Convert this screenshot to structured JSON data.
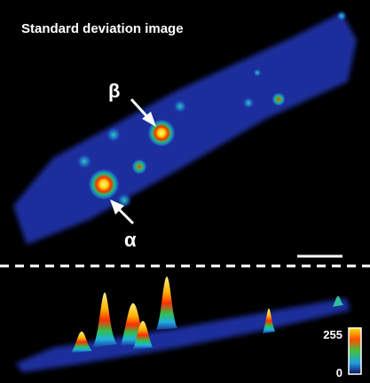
{
  "title": "Standard deviation image",
  "labels": {
    "beta": "β",
    "alpha": "α"
  },
  "colorbar": {
    "max": 255,
    "min": 0
  }
}
